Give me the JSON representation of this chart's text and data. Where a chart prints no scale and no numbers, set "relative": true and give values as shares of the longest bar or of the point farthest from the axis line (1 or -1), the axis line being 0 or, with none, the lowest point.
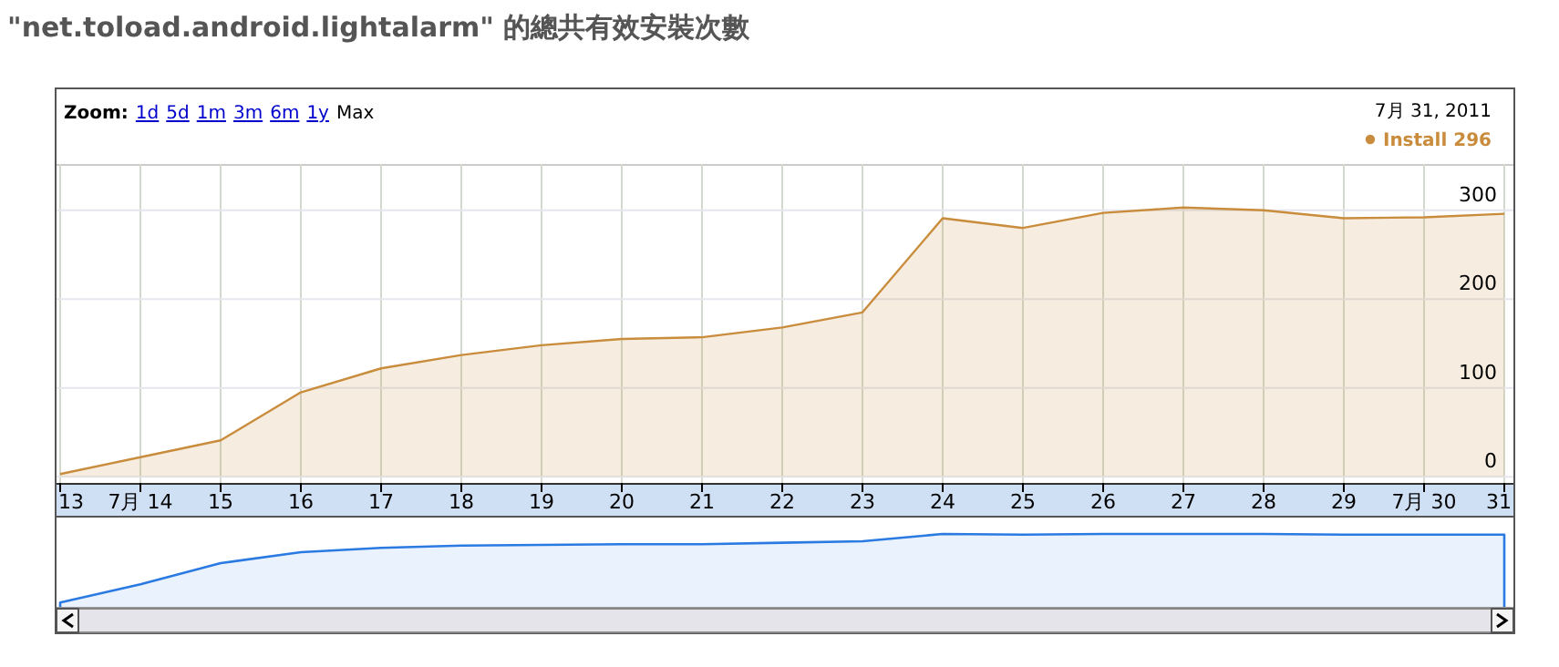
{
  "chart_data": [
    {
      "type": "area",
      "title": "\"net.toload.android.lightalarm\" 的總共有效安裝次數",
      "categories": [
        "13",
        "7月 14",
        "15",
        "16",
        "17",
        "18",
        "19",
        "20",
        "21",
        "22",
        "23",
        "24",
        "25",
        "26",
        "27",
        "28",
        "29",
        "7月 30",
        "31"
      ],
      "series": [
        {
          "name": "Install 296",
          "color": "#c98c3c",
          "values": [
            3,
            22,
            41,
            95,
            122,
            137,
            148,
            155,
            157,
            168,
            185,
            291,
            280,
            297,
            303,
            300,
            291,
            292,
            296
          ]
        }
      ],
      "ylim": [
        -7,
        352
      ],
      "yticks": [
        0,
        100,
        200,
        300
      ],
      "grid": true,
      "legend": "top right",
      "annotations": [
        "Zoom:",
        "1d",
        "5d",
        "1m",
        "3m",
        "6m",
        "1y",
        "Max",
        "7月 31, 2011"
      ]
    },
    {
      "type": "area",
      "relative": true,
      "categories": [
        null,
        null,
        null,
        null,
        null,
        null,
        null,
        null,
        null,
        null,
        null,
        null,
        null,
        null,
        null,
        null,
        null,
        null,
        null
      ],
      "series": [
        {
          "color": "#2a7ae2",
          "values": [
            0.06,
            0.31,
            0.6,
            0.75,
            0.81,
            0.84,
            0.85,
            0.86,
            0.86,
            0.88,
            0.9,
            1.0,
            0.99,
            1.0,
            1.0,
            1.0,
            0.99,
            0.99,
            0.99
          ]
        }
      ]
    }
  ]
}
